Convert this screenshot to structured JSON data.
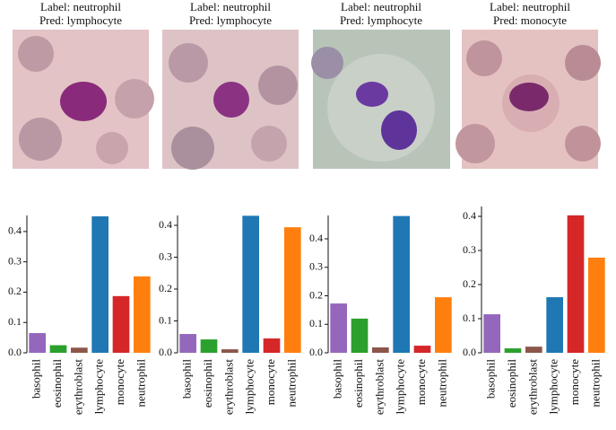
{
  "chart_data": [
    {
      "type": "bar",
      "title": "Label: neutrophil",
      "subtitle": "Pred: lymphocyte",
      "categories": [
        "basophil",
        "eosinophil",
        "erythroblast",
        "lymphocyte",
        "monocyte",
        "neutrophil"
      ],
      "values": [
        0.065,
        0.025,
        0.017,
        0.45,
        0.187,
        0.252
      ],
      "colors": [
        "#9467bd",
        "#2ca02c",
        "#8c564b",
        "#1f77b4",
        "#d62728",
        "#ff7f0e"
      ],
      "ylim": [
        0,
        0.453
      ],
      "yticks": [
        {
          "value": 0,
          "label": "0.0"
        },
        0.1,
        0.2,
        0.3,
        0.4
      ]
    },
    {
      "type": "bar",
      "title": "Label: neutrophil",
      "subtitle": "Pred: lymphocyte",
      "categories": [
        "basophil",
        "eosinophil",
        "erythroblast",
        "lymphocyte",
        "monocyte",
        "neutrophil"
      ],
      "values": [
        0.059,
        0.042,
        0.011,
        0.43,
        0.045,
        0.394
      ],
      "colors": [
        "#9467bd",
        "#2ca02c",
        "#8c564b",
        "#1f77b4",
        "#d62728",
        "#ff7f0e"
      ],
      "ylim": [
        0,
        0.431
      ],
      "yticks": [
        {
          "value": 0,
          "label": "0.0"
        },
        0.1,
        0.2,
        0.3,
        0.4
      ]
    },
    {
      "type": "bar",
      "title": "Label: neutrophil",
      "subtitle": "Pred: lymphocyte",
      "categories": [
        "basophil",
        "eosinophil",
        "erythroblast",
        "lymphocyte",
        "monocyte",
        "neutrophil"
      ],
      "values": [
        0.173,
        0.12,
        0.019,
        0.48,
        0.025,
        0.195
      ],
      "colors": [
        "#9467bd",
        "#2ca02c",
        "#8c564b",
        "#1f77b4",
        "#d62728",
        "#ff7f0e"
      ],
      "ylim": [
        0,
        0.482
      ],
      "yticks": [
        {
          "value": 0,
          "label": "0.0"
        },
        0.1,
        0.2,
        0.3,
        0.4
      ]
    },
    {
      "type": "bar",
      "title": "Label: neutrophil",
      "subtitle": "Pred: monocyte",
      "categories": [
        "basophil",
        "eosinophil",
        "erythroblast",
        "lymphocyte",
        "monocyte",
        "neutrophil"
      ],
      "values": [
        0.113,
        0.013,
        0.018,
        0.163,
        0.403,
        0.279
      ],
      "colors": [
        "#9467bd",
        "#2ca02c",
        "#8c564b",
        "#1f77b4",
        "#d62728",
        "#ff7f0e"
      ],
      "ylim": [
        0,
        0.429
      ],
      "yticks": [
        {
          "value": 0,
          "label": "0.0"
        },
        0.1,
        0.2,
        0.3,
        0.4
      ]
    }
  ]
}
